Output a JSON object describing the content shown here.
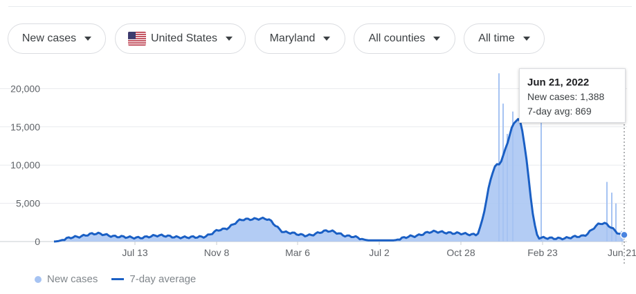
{
  "filters": [
    {
      "label": "New cases"
    },
    {
      "label": "United States"
    },
    {
      "label": "Maryland"
    },
    {
      "label": "All counties"
    },
    {
      "label": "All time"
    }
  ],
  "colors": {
    "bars": "#a6c3f2",
    "line": "#1a5fc4",
    "grid": "#e8eaed",
    "text": "#5f6368"
  },
  "tooltip": {
    "date": "Jun 21, 2022",
    "cases_line": "New cases: 1,388",
    "avg_line": "7-day avg: 869"
  },
  "legend": {
    "bars_label": "New cases",
    "line_label": "7-day average"
  },
  "chart_data": {
    "type": "bar",
    "title": "",
    "xlabel": "",
    "ylabel": "",
    "ylim": [
      0,
      22000
    ],
    "y_ticks": [
      0,
      5000,
      10000,
      15000,
      20000
    ],
    "y_tick_labels": [
      "0",
      "5,000",
      "10,000",
      "15,000",
      "20,000"
    ],
    "x_tick_labels": [
      "Jul 13",
      "Nov 8",
      "Mar 6",
      "Jul 2",
      "Oct 28",
      "Feb 23",
      "Jun 21"
    ],
    "grid": true,
    "legend_position": "bottom-left",
    "series": [
      {
        "name": "7-day average",
        "type": "line",
        "points": [
          [
            "Mar 2020",
            0
          ],
          [
            "Apr 2020",
            600
          ],
          [
            "May 2020",
            1050
          ],
          [
            "Jun 2020",
            650
          ],
          [
            "Jul 2020",
            500
          ],
          [
            "Aug 2020",
            800
          ],
          [
            "Sep 2020",
            550
          ],
          [
            "Oct 2020",
            600
          ],
          [
            "Nov 2020",
            1600
          ],
          [
            "Dec 2020",
            2900
          ],
          [
            "Jan 2021",
            3000
          ],
          [
            "Feb 2021",
            1200
          ],
          [
            "Mar 2021",
            800
          ],
          [
            "Apr 2021",
            1400
          ],
          [
            "May 2021",
            700
          ],
          [
            "Jun 2021",
            150
          ],
          [
            "Jul 2021",
            150
          ],
          [
            "Aug 2021",
            700
          ],
          [
            "Sep 2021",
            1300
          ],
          [
            "Oct 2021",
            1100
          ],
          [
            "Nov 2021",
            900
          ],
          [
            "Dec 2021",
            10000
          ],
          [
            "Jan 2022",
            16000
          ],
          [
            "Feb 2022",
            500
          ],
          [
            "Mar 2022",
            400
          ],
          [
            "Apr 2022",
            700
          ],
          [
            "May 2022",
            2400
          ],
          [
            "Jun 21, 2022",
            869
          ]
        ]
      },
      {
        "name": "New cases",
        "type": "bar",
        "points": [
          [
            "Dec 2021",
            22000
          ],
          [
            "Jan 2022",
            17000
          ],
          [
            "Feb 23, 2022",
            16000
          ],
          [
            "May 2022",
            7800
          ],
          [
            "Jun 21, 2022",
            1388
          ]
        ]
      }
    ]
  }
}
